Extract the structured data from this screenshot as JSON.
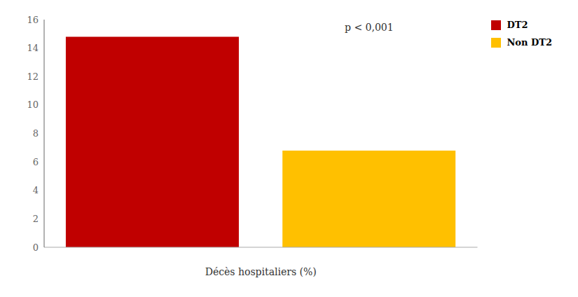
{
  "chart_data": {
    "type": "bar",
    "categories": [
      "DT2",
      "Non DT2"
    ],
    "values": [
      14.8,
      6.8
    ],
    "colors": [
      "#c00000",
      "#ffc000"
    ],
    "xlabel": "Décès hospitaliers (%)",
    "ylim": [
      0,
      16
    ],
    "yticks": [
      0,
      2,
      4,
      6,
      8,
      10,
      12,
      14,
      16
    ],
    "annotation": "p < 0,001",
    "grid": false,
    "legend": "upper right",
    "tick_labels": "y"
  }
}
